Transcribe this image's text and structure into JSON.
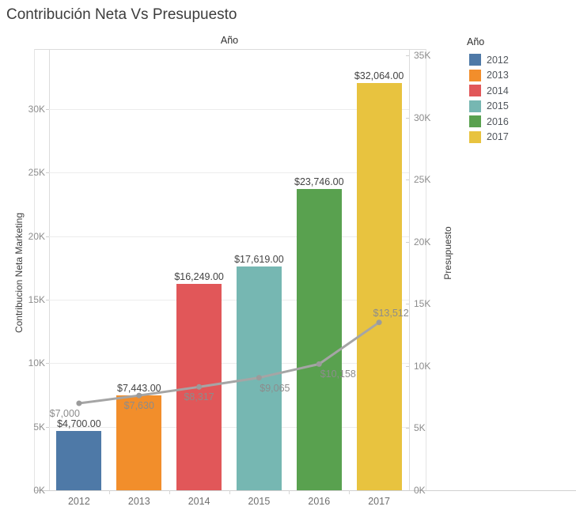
{
  "title": "Contribución Neta Vs Presupuesto",
  "axes": {
    "column_header": "Año",
    "left": {
      "title": "Contribucion Neta Marketing",
      "ticks": [
        {
          "value": 0,
          "label": "0K"
        },
        {
          "value": 5000,
          "label": "5K"
        },
        {
          "value": 10000,
          "label": "10K"
        },
        {
          "value": 15000,
          "label": "15K"
        },
        {
          "value": 20000,
          "label": "20K"
        },
        {
          "value": 25000,
          "label": "25K"
        },
        {
          "value": 30000,
          "label": "30K"
        }
      ]
    },
    "right": {
      "title": "Presupuesto",
      "ticks": [
        {
          "value": 0,
          "label": "0K"
        },
        {
          "value": 5000,
          "label": "5K"
        },
        {
          "value": 10000,
          "label": "10K"
        },
        {
          "value": 15000,
          "label": "15K"
        },
        {
          "value": 20000,
          "label": "20K"
        },
        {
          "value": 25000,
          "label": "25K"
        },
        {
          "value": 30000,
          "label": "30K"
        },
        {
          "value": 35000,
          "label": "35K"
        }
      ]
    }
  },
  "legend": {
    "title": "Año",
    "items": [
      {
        "label": "2012",
        "color": "#4e79a7"
      },
      {
        "label": "2013",
        "color": "#f28e2b"
      },
      {
        "label": "2014",
        "color": "#e15759"
      },
      {
        "label": "2015",
        "color": "#76b7b2"
      },
      {
        "label": "2016",
        "color": "#59a14f"
      },
      {
        "label": "2017",
        "color": "#e8c33f"
      }
    ]
  },
  "chart_data": {
    "type": "combo-bar-line",
    "categories": [
      "2012",
      "2013",
      "2014",
      "2015",
      "2016",
      "2017"
    ],
    "series": [
      {
        "name": "Contribucion Neta Marketing",
        "type": "bar",
        "axis": "left",
        "values": [
          4700,
          7443,
          16249,
          17619,
          23746,
          32064
        ],
        "value_labels": [
          "$4,700.00",
          "$7,443.00",
          "$16,249.00",
          "$17,619.00",
          "$23,746.00",
          "$32,064.00"
        ],
        "colors": [
          "#4e79a7",
          "#f28e2b",
          "#e15759",
          "#76b7b2",
          "#59a14f",
          "#e8c33f"
        ]
      },
      {
        "name": "Presupuesto",
        "type": "line",
        "axis": "right",
        "values": [
          7000,
          7630,
          8317,
          9065,
          10158,
          13512
        ],
        "value_labels": [
          "$7,000",
          "$7,630",
          "$8,317",
          "$9,065",
          "$10,158",
          "$13,512"
        ],
        "color": "#a5a5a5",
        "marker_color": "#9b9b9b"
      }
    ],
    "left_axis_range": [
      0,
      34700
    ],
    "right_axis_range": [
      0,
      35500
    ],
    "grid": "horizontal",
    "legend_position": "right"
  },
  "colors": {
    "grid": "#ececec",
    "pane_border": "#dcdcdc",
    "axis_baseline": "#d0d0d0"
  }
}
